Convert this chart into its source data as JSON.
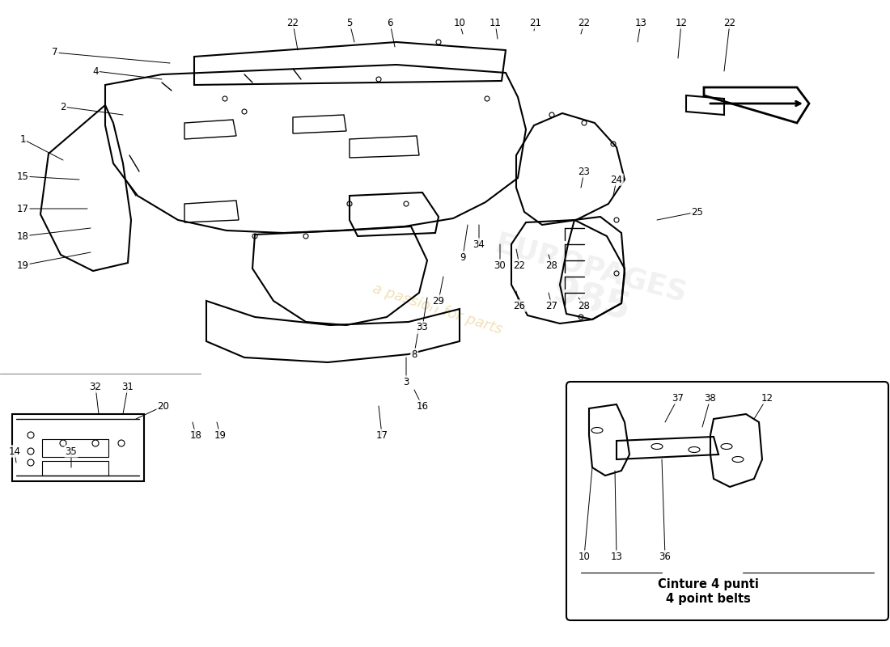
{
  "bg_color": "#ffffff",
  "line_color": "#000000",
  "watermark_color": "#e8c87a",
  "inset_label_line1": "Cinture 4 punti",
  "inset_label_line2": "4 point belts",
  "figsize": [
    11.0,
    8.0
  ],
  "dpi": 100
}
